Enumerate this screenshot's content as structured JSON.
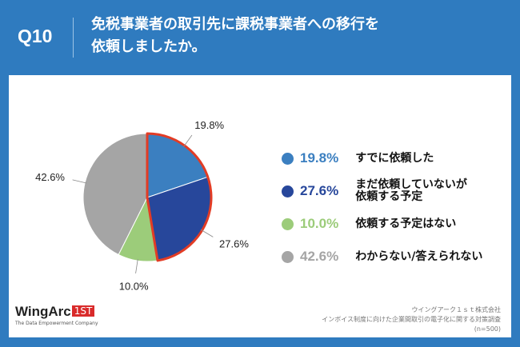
{
  "header": {
    "question_number": "Q10",
    "title_line1": "免税事業者の取引先に課税事業者への移行を",
    "title_line2": "依頼しましたか。"
  },
  "chart_data": {
    "type": "pie",
    "start": "12 o'clock, clockwise",
    "slices": [
      {
        "label_line1": "すでに依頼した",
        "label_line2": "",
        "value": 19.8,
        "value_text": "19.8%",
        "color": "#3b7fc0",
        "highlight": true
      },
      {
        "label_line1": "まだ依頼していないが",
        "label_line2": "依頼する予定",
        "value": 27.6,
        "value_text": "27.6%",
        "color": "#27479b",
        "highlight": true
      },
      {
        "label_line1": "依頼する予定はない",
        "label_line2": "",
        "value": 10.0,
        "value_text": "10.0%",
        "color": "#9ccc7a",
        "highlight": false
      },
      {
        "label_line1": "わからない/答えられない",
        "label_line2": "",
        "value": 42.6,
        "value_text": "42.6%",
        "color": "#a5a5a5",
        "highlight": false
      }
    ],
    "highlight_color": "#e23c25",
    "legend_position": "right"
  },
  "logo": {
    "name": "WingArc",
    "badge": "1ST",
    "tagline": "The Data Empowerment Company"
  },
  "source": {
    "line1": "ウイングアーク１ｓｔ株式会社",
    "line2": "インボイス制度に向けた企業間取引の電子化に関する対策調査",
    "line3": "(n=500)"
  },
  "colors": {
    "background": "#2f7bbf",
    "panel": "#ffffff"
  }
}
